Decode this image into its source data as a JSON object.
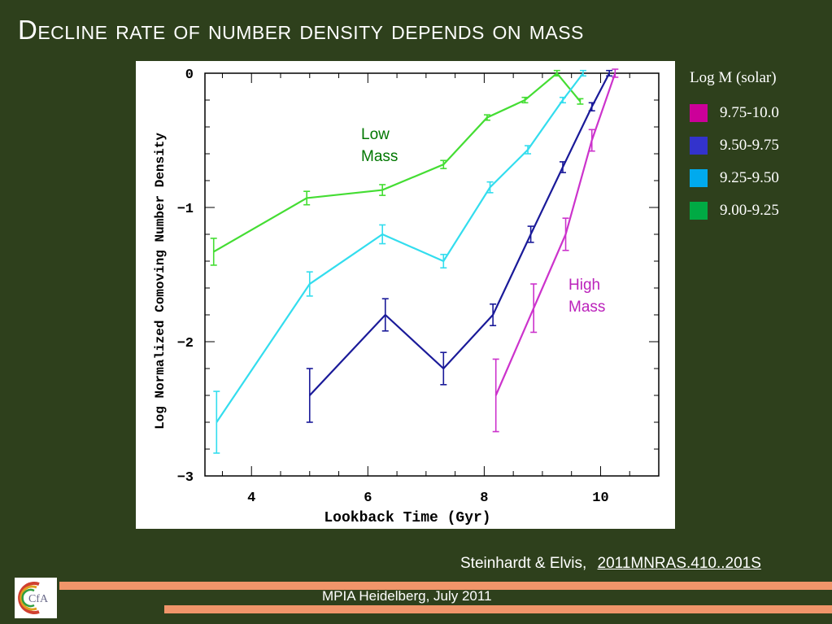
{
  "slide": {
    "title": "Decline rate of number density depends on mass",
    "citation_authors": "Steinhardt & Elvis,",
    "citation_ref": "2011MNRAS.410..201S",
    "footer": "MPIA Heidelberg, July 2011",
    "logo_text": "CfA"
  },
  "legend": {
    "title": "Log M (solar)",
    "items": [
      {
        "label": "9.75-10.0",
        "color": "#cc0099"
      },
      {
        "label": "9.50-9.75",
        "color": "#3333cc"
      },
      {
        "label": "9.25-9.50",
        "color": "#00aaee"
      },
      {
        "label": "9.00-9.25",
        "color": "#00aa44"
      }
    ]
  },
  "annotations": {
    "low_mass": [
      "Low",
      "Mass"
    ],
    "high_mass": [
      "High",
      "Mass"
    ],
    "low_mass_color": "#007700",
    "high_mass_color": "#bb22bb"
  },
  "chart_data": {
    "type": "line",
    "xlabel": "Lookback Time (Gyr)",
    "ylabel": "Log Normalized Comoving Number Density",
    "xlim": [
      3.2,
      11.0
    ],
    "ylim": [
      -3,
      0
    ],
    "xticks": [
      4,
      6,
      8,
      10
    ],
    "yticks": [
      0,
      -1,
      -2,
      -3
    ],
    "series": [
      {
        "color": "#44dd33",
        "x": [
          3.35,
          4.95,
          6.25,
          7.3,
          8.05,
          8.7,
          9.25,
          9.65
        ],
        "y": [
          -1.33,
          -0.93,
          -0.87,
          -0.68,
          -0.33,
          -0.2,
          0.0,
          -0.21
        ],
        "err": [
          0.1,
          0.05,
          0.04,
          0.03,
          0.02,
          0.02,
          0.02,
          0.02
        ]
      },
      {
        "color": "#33ddee",
        "x": [
          3.4,
          5.0,
          6.25,
          7.3,
          8.1,
          8.75,
          9.35,
          9.7
        ],
        "y": [
          -2.6,
          -1.57,
          -1.2,
          -1.4,
          -0.85,
          -0.57,
          -0.2,
          0.0
        ],
        "err": [
          0.23,
          0.09,
          0.07,
          0.05,
          0.04,
          0.03,
          0.02,
          0.02
        ]
      },
      {
        "color": "#1a1a99",
        "x": [
          5.0,
          6.3,
          7.3,
          8.15,
          8.8,
          9.35,
          9.85,
          10.15
        ],
        "y": [
          -2.4,
          -1.8,
          -2.2,
          -1.8,
          -1.2,
          -0.7,
          -0.25,
          0.0
        ],
        "err": [
          0.2,
          0.12,
          0.12,
          0.08,
          0.06,
          0.04,
          0.03,
          0.02
        ]
      },
      {
        "color": "#cc33cc",
        "x": [
          8.2,
          8.85,
          9.4,
          9.85,
          10.25
        ],
        "y": [
          -2.4,
          -1.75,
          -1.2,
          -0.5,
          0.0
        ],
        "err": [
          0.27,
          0.18,
          0.12,
          0.08,
          0.03
        ]
      }
    ]
  }
}
